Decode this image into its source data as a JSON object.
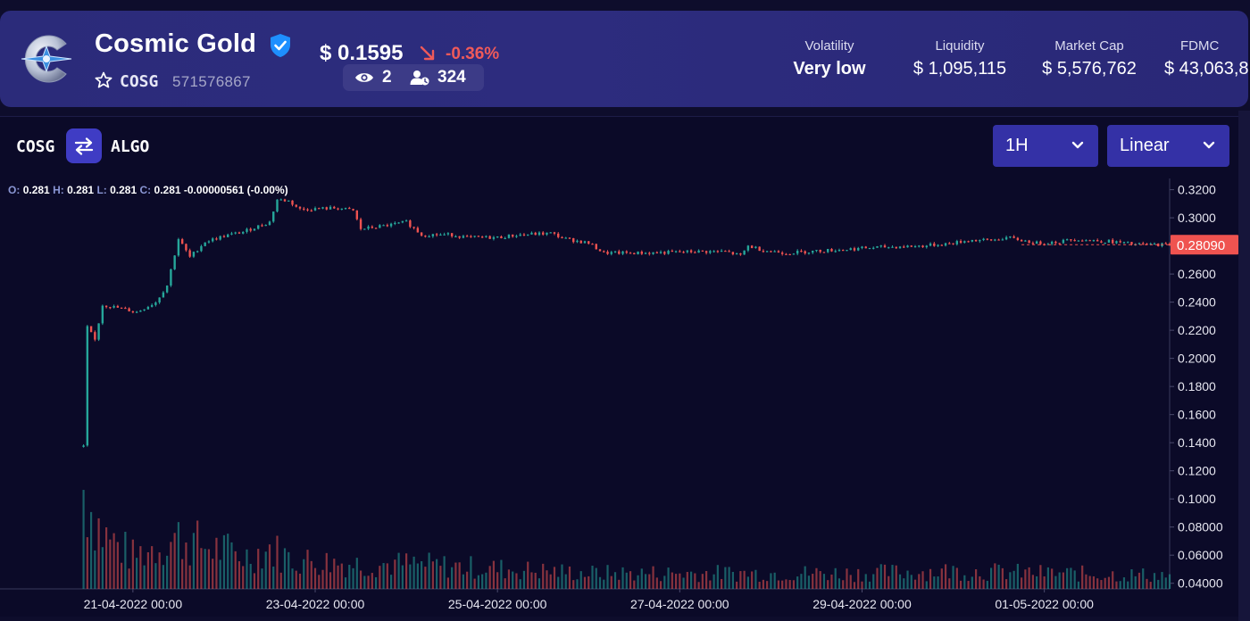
{
  "header": {
    "coin_name": "Cosmic Gold",
    "ticker": "COSG",
    "asset_id": "571576867",
    "price": "$ 0.1595",
    "change": "-0.36%",
    "views": "2",
    "holders": "324",
    "metrics": [
      {
        "label": "Volatility",
        "value": "Very low"
      },
      {
        "label": "Liquidity",
        "value": "$ 1,095,115"
      },
      {
        "label": "Market Cap",
        "value": "$ 5,576,762"
      },
      {
        "label": "FDMC",
        "value": "$ 43,063,8"
      }
    ],
    "icons": [
      "cosmic-gold-logo",
      "verified-shield-icon",
      "star-icon",
      "arrow-down-right-icon",
      "eye-icon",
      "holders-icon"
    ]
  },
  "toolbar": {
    "pair_base": "COSG",
    "pair_quote": "ALGO",
    "swap_icon": "swap-arrows-icon",
    "interval": "1H",
    "scale": "Linear"
  },
  "ohlc": {
    "o_label": "O:",
    "o": "0.281",
    "h_label": "H:",
    "h": "0.281",
    "l_label": "L:",
    "l": "0.281",
    "c_label": "C:",
    "c": "0.281",
    "change": "-0.00000561 (-0.00%)"
  },
  "colors": {
    "up": "#26a69a",
    "down": "#ef5350",
    "accent": "#3f3cc4",
    "background": "#0b0a28",
    "header": "#2b2b7a"
  },
  "chart_data": {
    "type": "candlestick",
    "x_unit": "hours",
    "x_ticks": [
      "21-04-2022 00:00",
      "23-04-2022 00:00",
      "25-04-2022 00:00",
      "27-04-2022 00:00",
      "29-04-2022 00:00",
      "01-05-2022 00:00"
    ],
    "y_ticks": [
      "0.3200",
      "0.3000",
      "0.2800",
      "0.2600",
      "0.2400",
      "0.2200",
      "0.2000",
      "0.1800",
      "0.1600",
      "0.1400",
      "0.1200",
      "0.1000",
      "0.08000",
      "0.06000",
      "0.04000"
    ],
    "ylim": [
      0.036,
      0.328
    ],
    "xlim": [
      "2022-04-19T13:00",
      "2022-05-02T09:00"
    ],
    "last_price_label": "0.28090",
    "price_path": [
      [
        "2022-04-20T11:00",
        0.137
      ],
      [
        "2022-04-20T12:00",
        0.222
      ],
      [
        "2022-04-20T14:00",
        0.213
      ],
      [
        "2022-04-20T16:00",
        0.238
      ],
      [
        "2022-04-20T20:00",
        0.236
      ],
      [
        "2022-04-21T01:00",
        0.233
      ],
      [
        "2022-04-21T06:00",
        0.24
      ],
      [
        "2022-04-21T09:00",
        0.252
      ],
      [
        "2022-04-21T12:00",
        0.285
      ],
      [
        "2022-04-21T15:00",
        0.272
      ],
      [
        "2022-04-21T19:00",
        0.283
      ],
      [
        "2022-04-22T00:00",
        0.287
      ],
      [
        "2022-04-22T05:00",
        0.29
      ],
      [
        "2022-04-22T09:00",
        0.294
      ],
      [
        "2022-04-22T12:00",
        0.297
      ],
      [
        "2022-04-22T14:00",
        0.313
      ],
      [
        "2022-04-22T17:00",
        0.312
      ],
      [
        "2022-04-22T20:00",
        0.306
      ],
      [
        "2022-04-23T06:00",
        0.307
      ],
      [
        "2022-04-23T10:00",
        0.305
      ],
      [
        "2022-04-23T12:00",
        0.292
      ],
      [
        "2022-04-23T20:00",
        0.295
      ],
      [
        "2022-04-24T00:00",
        0.297
      ],
      [
        "2022-04-24T04:00",
        0.288
      ],
      [
        "2022-04-24T12:00",
        0.288
      ],
      [
        "2022-04-24T16:00",
        0.286
      ],
      [
        "2022-04-25T00:00",
        0.286
      ],
      [
        "2022-04-25T06:00",
        0.288
      ],
      [
        "2022-04-25T14:00",
        0.289
      ],
      [
        "2022-04-25T18:00",
        0.285
      ],
      [
        "2022-04-26T00:00",
        0.282
      ],
      [
        "2022-04-26T04:00",
        0.275
      ],
      [
        "2022-04-26T16:00",
        0.275
      ],
      [
        "2022-04-27T04:00",
        0.276
      ],
      [
        "2022-04-27T12:00",
        0.276
      ],
      [
        "2022-04-27T16:00",
        0.273
      ],
      [
        "2022-04-27T18:00",
        0.28
      ],
      [
        "2022-04-27T22:00",
        0.277
      ],
      [
        "2022-04-28T04:00",
        0.275
      ],
      [
        "2022-04-28T16:00",
        0.277
      ],
      [
        "2022-04-29T04:00",
        0.279
      ],
      [
        "2022-04-29T16:00",
        0.28
      ],
      [
        "2022-04-30T00:00",
        0.282
      ],
      [
        "2022-04-30T04:00",
        0.284
      ],
      [
        "2022-04-30T10:00",
        0.284
      ],
      [
        "2022-04-30T14:00",
        0.286
      ],
      [
        "2022-04-30T18:00",
        0.284
      ],
      [
        "2022-04-30T22:00",
        0.282
      ],
      [
        "2022-05-01T04:00",
        0.283
      ],
      [
        "2022-05-01T08:00",
        0.285
      ],
      [
        "2022-05-01T12:00",
        0.284
      ],
      [
        "2022-05-01T18:00",
        0.283
      ],
      [
        "2022-05-02T00:00",
        0.281
      ],
      [
        "2022-05-02T09:00",
        0.281
      ]
    ],
    "volume_path": [
      [
        "2022-04-20T11:00",
        0.125
      ],
      [
        "2022-04-20T16:00",
        0.085
      ],
      [
        "2022-04-21T00:00",
        0.065
      ],
      [
        "2022-04-21T12:00",
        0.082
      ],
      [
        "2022-04-21T18:00",
        0.075
      ],
      [
        "2022-04-22T06:00",
        0.065
      ],
      [
        "2022-04-22T12:00",
        0.072
      ],
      [
        "2022-04-22T18:00",
        0.062
      ],
      [
        "2022-04-23T12:00",
        0.058
      ],
      [
        "2022-04-24T00:00",
        0.058
      ],
      [
        "2022-04-25T00:00",
        0.054
      ],
      [
        "2022-04-26T00:00",
        0.05
      ],
      [
        "2022-04-27T00:00",
        0.05
      ],
      [
        "2022-04-28T00:00",
        0.05
      ],
      [
        "2022-04-29T00:00",
        0.05
      ],
      [
        "2022-04-30T00:00",
        0.052
      ],
      [
        "2022-05-01T00:00",
        0.05
      ],
      [
        "2022-05-02T09:00",
        0.048
      ]
    ]
  }
}
